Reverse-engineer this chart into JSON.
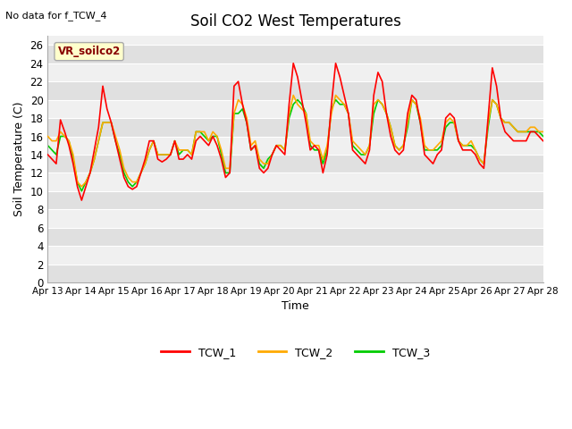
{
  "title": "Soil CO2 West Temperatures",
  "subtitle": "No data for f_TCW_4",
  "xlabel": "Time",
  "ylabel": "Soil Temperature (C)",
  "ylim": [
    0,
    27
  ],
  "yticks": [
    0,
    2,
    4,
    6,
    8,
    10,
    12,
    14,
    16,
    18,
    20,
    22,
    24,
    26
  ],
  "xtick_labels": [
    "Apr 13",
    "Apr 14",
    "Apr 15",
    "Apr 16",
    "Apr 17",
    "Apr 18",
    "Apr 19",
    "Apr 20",
    "Apr 21",
    "Apr 22",
    "Apr 23",
    "Apr 24",
    "Apr 25",
    "Apr 26",
    "Apr 27",
    "Apr 28"
  ],
  "vr_label": "VR_soilco2",
  "vr_box_facecolor": "#ffffcc",
  "vr_box_edgecolor": "#aaaaaa",
  "vr_text_color": "#880000",
  "legend_entries": [
    "TCW_1",
    "TCW_2",
    "TCW_3"
  ],
  "line_colors": [
    "#ff0000",
    "#ffaa00",
    "#00cc00"
  ],
  "line_width": 1.2,
  "fig_facecolor": "#ffffff",
  "plot_facecolor": "#f0f0f0",
  "band_color_light": "#f8f8f8",
  "band_color_dark": "#e8e8e8",
  "grid_color": "#ffffff",
  "TCW_1": [
    14.0,
    13.5,
    13.0,
    17.8,
    16.5,
    15.0,
    13.0,
    10.5,
    9.0,
    10.5,
    12.0,
    14.5,
    17.0,
    21.5,
    19.0,
    17.5,
    15.5,
    13.5,
    11.5,
    10.5,
    10.2,
    10.5,
    12.0,
    13.5,
    15.5,
    15.5,
    13.5,
    13.2,
    13.5,
    14.0,
    15.5,
    13.5,
    13.5,
    14.0,
    13.5,
    15.5,
    16.0,
    15.5,
    15.0,
    16.0,
    15.0,
    13.5,
    11.5,
    12.0,
    21.5,
    22.0,
    19.5,
    17.5,
    14.5,
    15.0,
    12.5,
    12.0,
    12.5,
    14.0,
    15.0,
    14.5,
    14.0,
    19.5,
    24.0,
    22.5,
    20.0,
    17.5,
    14.5,
    15.0,
    14.5,
    12.0,
    14.0,
    19.5,
    24.0,
    22.5,
    20.5,
    18.5,
    14.5,
    14.0,
    13.5,
    13.0,
    14.5,
    20.5,
    23.0,
    22.0,
    18.5,
    16.0,
    14.5,
    14.0,
    14.5,
    18.5,
    20.5,
    20.0,
    17.5,
    14.0,
    13.5,
    13.0,
    14.0,
    14.5,
    18.0,
    18.5,
    18.0,
    15.5,
    14.5,
    14.5,
    14.5,
    14.0,
    13.0,
    12.5,
    18.0,
    23.5,
    21.5,
    18.0,
    16.5,
    16.0,
    15.5,
    15.5,
    15.5,
    15.5,
    16.5,
    16.5,
    16.0,
    15.5
  ],
  "TCW_2": [
    16.0,
    15.5,
    15.5,
    16.5,
    16.0,
    15.5,
    14.0,
    11.0,
    10.5,
    11.0,
    12.0,
    13.5,
    15.5,
    17.5,
    17.5,
    17.5,
    16.0,
    14.5,
    12.5,
    11.5,
    11.0,
    11.0,
    12.0,
    13.0,
    14.5,
    15.5,
    14.0,
    14.0,
    14.0,
    14.0,
    15.5,
    14.5,
    14.5,
    14.5,
    14.0,
    16.5,
    16.5,
    16.5,
    15.5,
    16.5,
    16.0,
    14.5,
    12.5,
    12.5,
    18.5,
    20.0,
    19.5,
    18.0,
    15.0,
    15.5,
    13.5,
    13.0,
    13.0,
    14.0,
    15.0,
    15.0,
    14.5,
    18.5,
    20.5,
    19.5,
    19.0,
    18.5,
    15.5,
    15.0,
    15.0,
    13.5,
    15.0,
    18.5,
    20.5,
    20.0,
    19.5,
    18.5,
    15.5,
    15.0,
    14.5,
    14.0,
    15.0,
    19.5,
    20.0,
    19.5,
    18.5,
    17.0,
    15.0,
    14.5,
    15.0,
    17.5,
    20.0,
    19.5,
    18.0,
    15.0,
    14.5,
    14.5,
    15.0,
    15.5,
    17.5,
    18.0,
    17.5,
    15.5,
    15.0,
    15.0,
    15.5,
    14.5,
    13.5,
    13.0,
    17.5,
    20.0,
    19.5,
    18.0,
    17.5,
    17.5,
    17.0,
    16.5,
    16.5,
    16.5,
    17.0,
    17.0,
    16.5,
    16.5
  ],
  "TCW_3": [
    15.0,
    14.5,
    14.0,
    16.0,
    16.0,
    15.5,
    13.5,
    11.0,
    10.0,
    11.0,
    12.0,
    13.5,
    15.5,
    17.5,
    17.5,
    17.5,
    15.5,
    14.0,
    12.0,
    11.0,
    10.5,
    11.0,
    12.0,
    13.0,
    14.5,
    15.5,
    14.0,
    14.0,
    14.0,
    14.0,
    15.5,
    14.0,
    14.5,
    14.5,
    14.0,
    16.5,
    16.5,
    16.0,
    15.5,
    16.0,
    16.0,
    14.0,
    12.0,
    12.0,
    18.5,
    18.5,
    19.0,
    17.5,
    14.5,
    15.0,
    13.0,
    12.5,
    13.5,
    14.0,
    15.0,
    15.0,
    14.5,
    18.0,
    19.5,
    20.0,
    19.5,
    18.5,
    15.0,
    14.5,
    14.5,
    13.0,
    14.5,
    19.0,
    20.0,
    19.5,
    19.5,
    18.5,
    15.0,
    14.5,
    14.0,
    14.0,
    15.0,
    18.5,
    20.0,
    19.5,
    18.5,
    17.0,
    15.0,
    14.5,
    15.0,
    17.0,
    20.0,
    19.5,
    17.5,
    14.5,
    14.5,
    14.5,
    14.5,
    15.0,
    17.0,
    17.5,
    17.5,
    15.5,
    15.0,
    15.0,
    15.0,
    14.5,
    13.5,
    13.0,
    17.0,
    20.0,
    19.5,
    18.0,
    17.5,
    17.5,
    17.0,
    16.5,
    16.5,
    16.5,
    16.5,
    16.5,
    16.5,
    16.0
  ]
}
